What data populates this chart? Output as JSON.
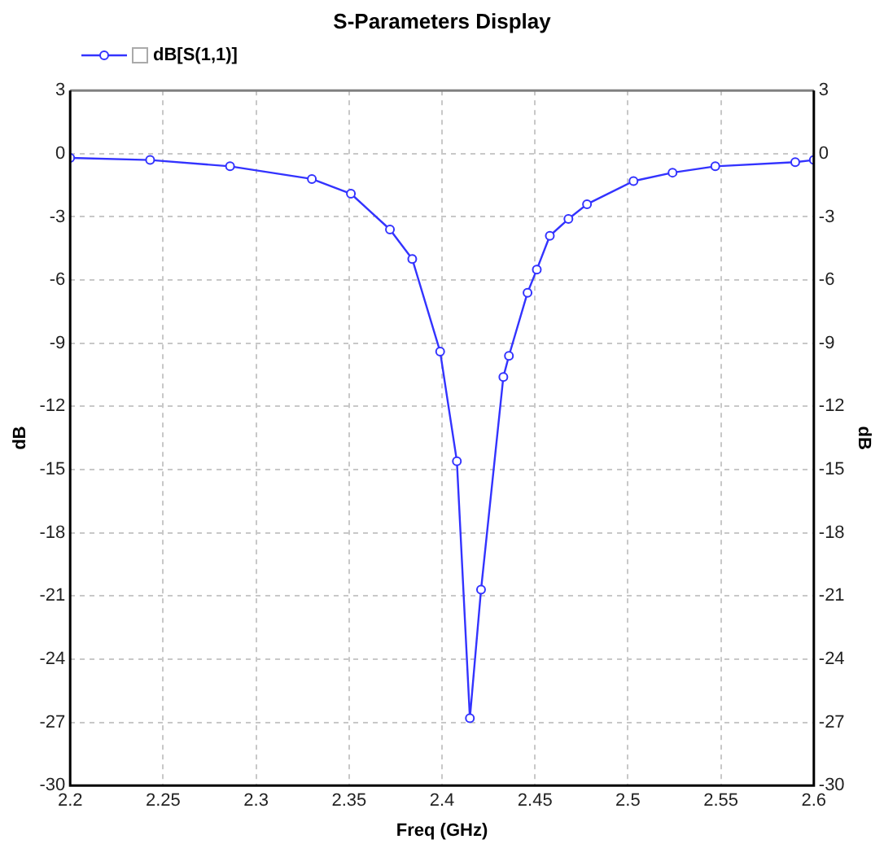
{
  "chart_data": {
    "type": "line",
    "title": "S-Parameters Display",
    "xlabel": "Freq (GHz)",
    "ylabel": "dB",
    "y2label": "dB",
    "series": [
      {
        "name": "dB[S(1,1)]",
        "color": "#3333ff",
        "x": [
          2.2,
          2.243,
          2.286,
          2.33,
          2.351,
          2.372,
          2.384,
          2.399,
          2.408,
          2.415,
          2.421,
          2.433,
          2.436,
          2.446,
          2.451,
          2.458,
          2.468,
          2.478,
          2.503,
          2.524,
          2.547,
          2.59,
          2.6
        ],
        "values": [
          -0.2,
          -0.3,
          -0.6,
          -1.2,
          -1.9,
          -3.6,
          -5.0,
          -9.4,
          -14.6,
          -26.8,
          -20.7,
          -10.6,
          -9.6,
          -6.6,
          -5.5,
          -3.9,
          -3.1,
          -2.4,
          -1.3,
          -0.9,
          -0.6,
          -0.4,
          -0.3
        ]
      }
    ],
    "xlim": [
      2.2,
      2.6
    ],
    "xticks": [
      2.2,
      2.25,
      2.3,
      2.35,
      2.4,
      2.45,
      2.5,
      2.55,
      2.6
    ],
    "ylim": [
      -30,
      3
    ],
    "yticks": [
      -30,
      -27,
      -24,
      -21,
      -18,
      -15,
      -12,
      -9,
      -6,
      -3,
      0,
      3
    ],
    "y2lim": [
      -30,
      3
    ],
    "y2ticks": [
      -30,
      -27,
      -24,
      -21,
      -18,
      -15,
      -12,
      -9,
      -6,
      -3,
      0,
      3
    ],
    "grid": true,
    "legend": "top left",
    "marker": "circle",
    "line_style": "solid"
  }
}
